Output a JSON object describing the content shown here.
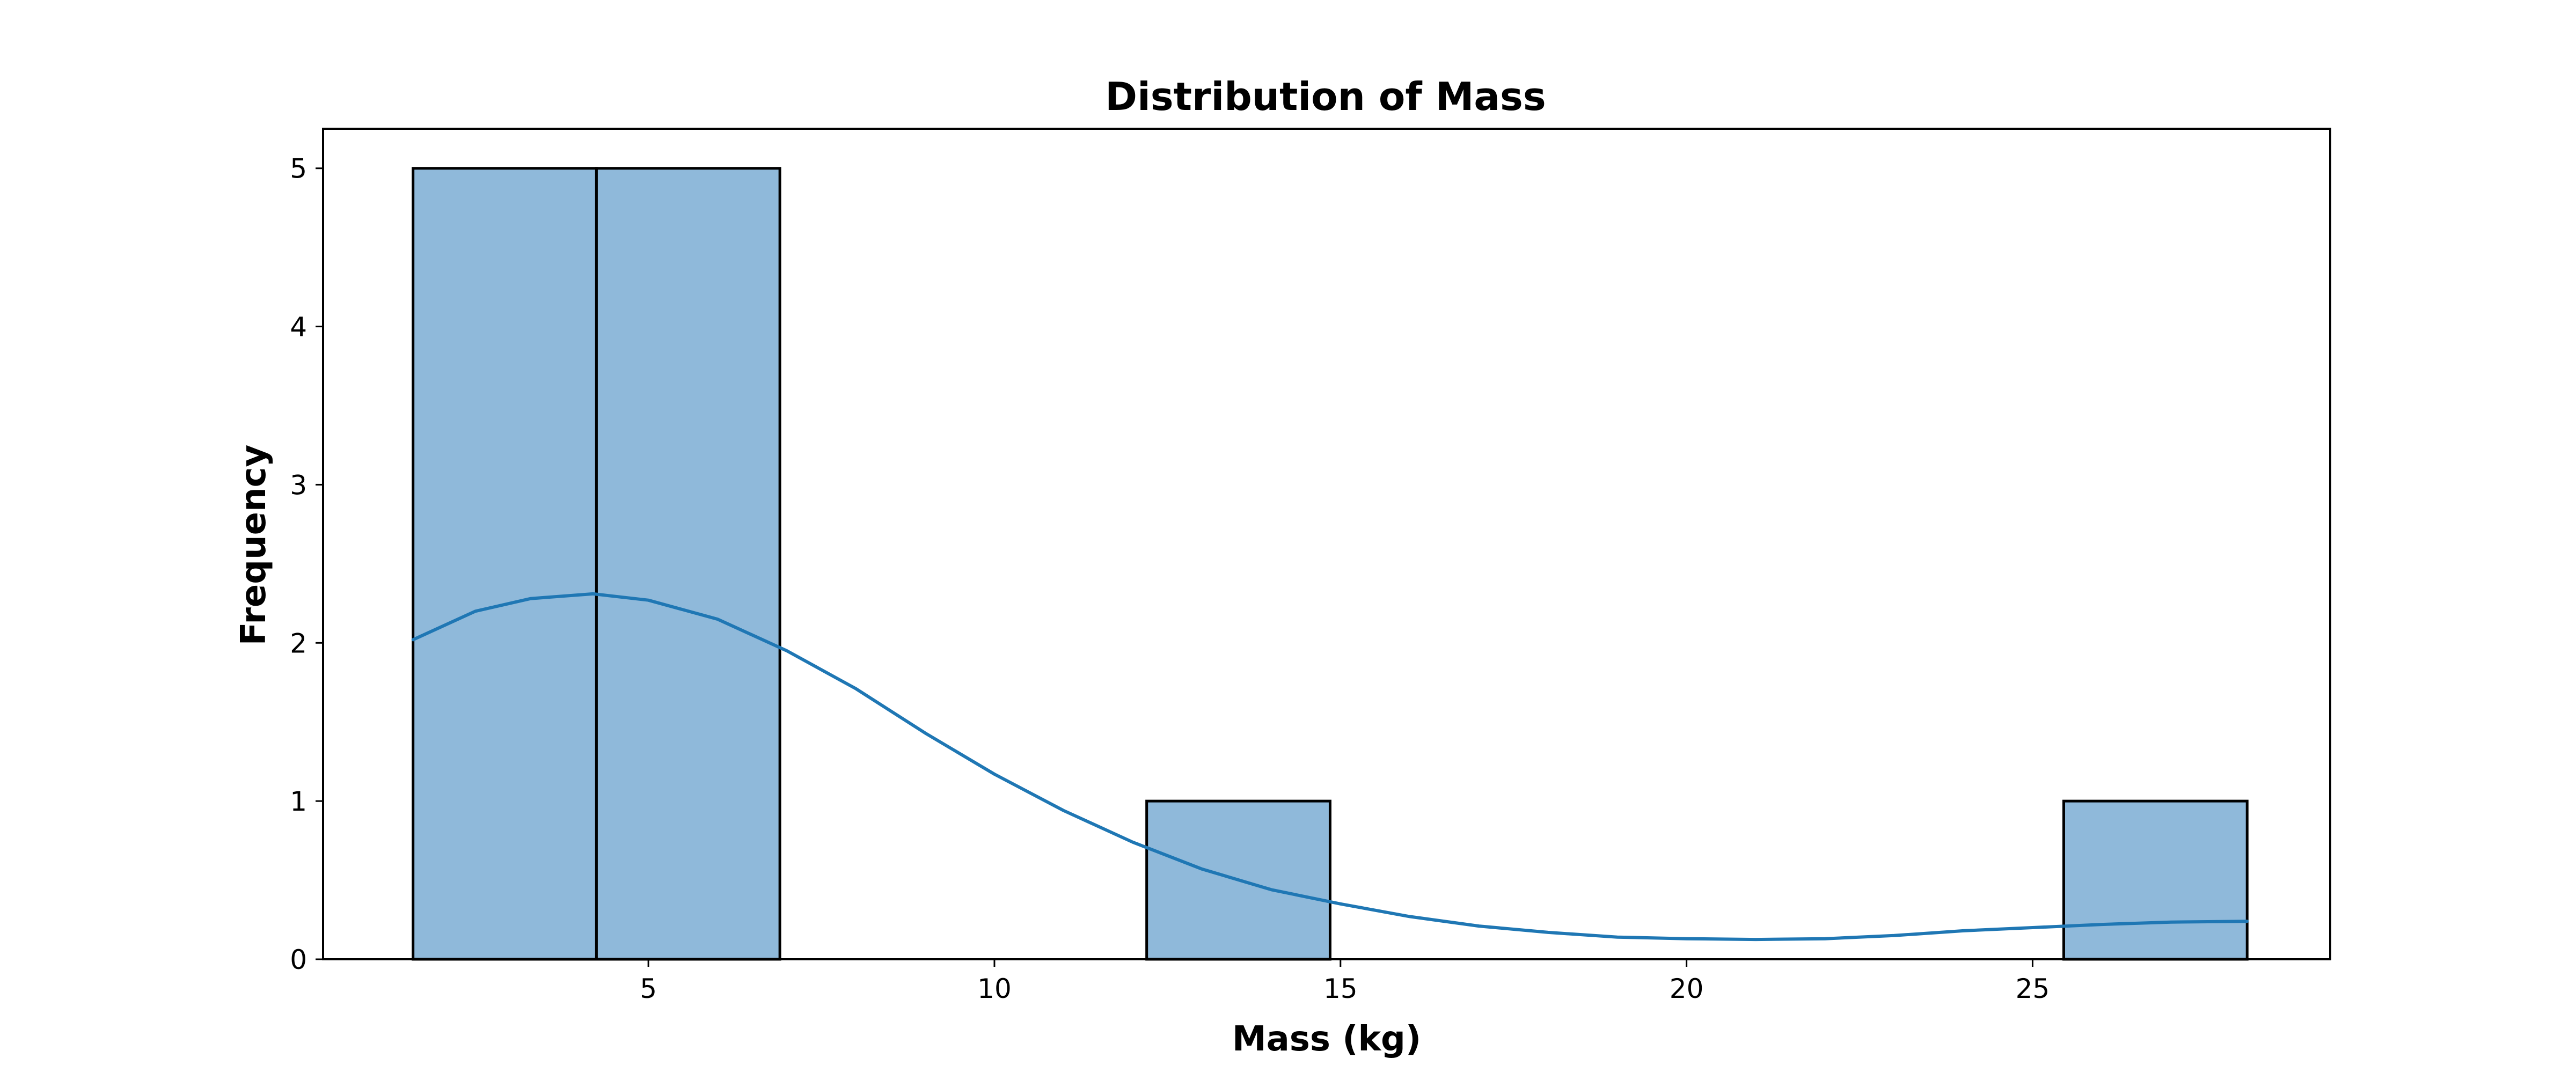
{
  "chart_data": {
    "type": "bar",
    "title": "Distribution of Mass",
    "xlabel": "Mass (kg)",
    "ylabel": "Frequency",
    "xlim": [
      0.3,
      29.3
    ],
    "ylim": [
      0,
      5.25
    ],
    "xticks": [
      5,
      10,
      15,
      20,
      25
    ],
    "yticks": [
      0,
      1,
      2,
      3,
      4,
      5
    ],
    "grid": false,
    "bins": [
      {
        "x0": 1.6,
        "x1": 4.25,
        "count": 5
      },
      {
        "x0": 4.25,
        "x1": 6.9,
        "count": 5
      },
      {
        "x0": 6.9,
        "x1": 9.55,
        "count": 0
      },
      {
        "x0": 9.55,
        "x1": 12.2,
        "count": 0
      },
      {
        "x0": 12.2,
        "x1": 14.85,
        "count": 1
      },
      {
        "x0": 14.85,
        "x1": 17.5,
        "count": 0
      },
      {
        "x0": 17.5,
        "x1": 20.15,
        "count": 0
      },
      {
        "x0": 20.15,
        "x1": 22.8,
        "count": 0
      },
      {
        "x0": 22.8,
        "x1": 25.45,
        "count": 0
      },
      {
        "x0": 25.45,
        "x1": 28.1,
        "count": 1
      }
    ],
    "kde": {
      "x": [
        1.6,
        2.5,
        3.3,
        4.2,
        5.0,
        6.0,
        7.0,
        8.0,
        9.0,
        10.0,
        11.0,
        12.0,
        13.0,
        14.0,
        15.0,
        16.0,
        17.0,
        18.0,
        19.0,
        20.0,
        21.0,
        22.0,
        23.0,
        24.0,
        25.0,
        26.0,
        27.0,
        28.1
      ],
      "y": [
        2.02,
        2.2,
        2.28,
        2.31,
        2.27,
        2.15,
        1.95,
        1.71,
        1.43,
        1.17,
        0.94,
        0.74,
        0.57,
        0.44,
        0.35,
        0.27,
        0.21,
        0.17,
        0.14,
        0.13,
        0.125,
        0.13,
        0.15,
        0.18,
        0.2,
        0.22,
        0.235,
        0.24
      ]
    },
    "colors": {
      "bar_fill": "#8fb9da",
      "bar_edge": "#000000",
      "kde_line": "#1f77b4"
    }
  }
}
